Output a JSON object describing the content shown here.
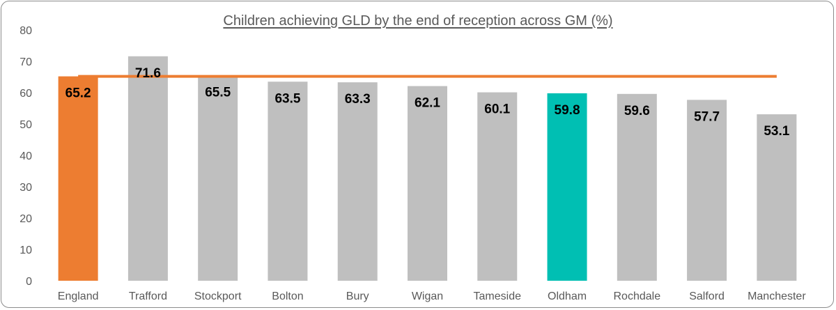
{
  "chart_data": {
    "type": "bar",
    "title": "Children achieving GLD by the end of reception across GM (%)",
    "xlabel": "",
    "ylabel": "",
    "categories": [
      "England",
      "Trafford",
      "Stockport",
      "Bolton",
      "Bury",
      "Wigan",
      "Tameside",
      "Oldham",
      "Rochdale",
      "Salford",
      "Manchester"
    ],
    "values": [
      65.2,
      71.6,
      65.5,
      63.5,
      63.3,
      62.1,
      60.1,
      59.8,
      59.6,
      57.7,
      53.1
    ],
    "data_labels": [
      "65.2",
      "71.6",
      "65.5",
      "63.5",
      "63.3",
      "62.1",
      "60.1",
      "59.8",
      "59.6",
      "57.7",
      "53.1"
    ],
    "ylim": [
      0,
      80
    ],
    "yticks": [
      0,
      10,
      20,
      30,
      40,
      50,
      60,
      70,
      80
    ],
    "reference_line": {
      "value": 65.2,
      "color": "#ED7D31"
    },
    "bar_colors": {
      "default": "#BFBFBF",
      "England": "#ED7D31",
      "Oldham": "#00BFB3"
    },
    "grid": false,
    "legend": "none"
  }
}
